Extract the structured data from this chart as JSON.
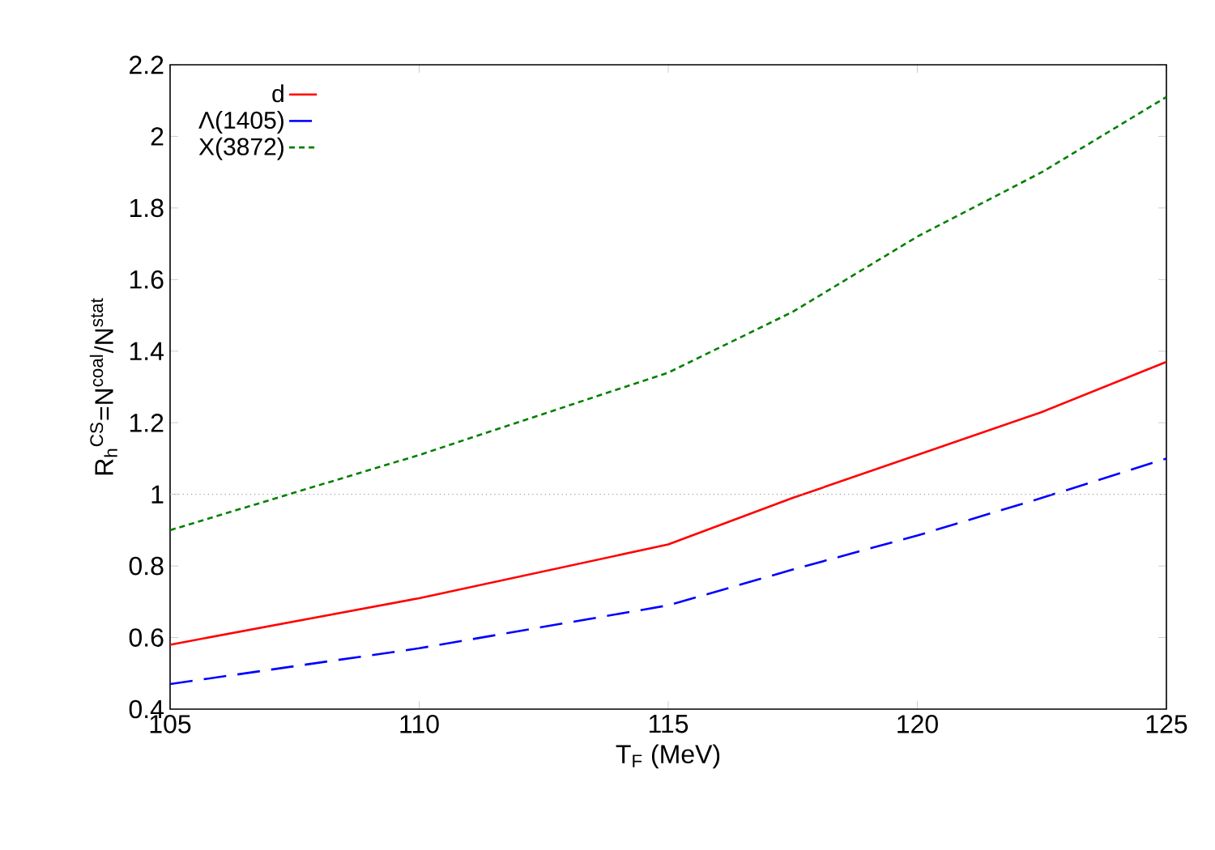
{
  "chart_data": {
    "type": "line",
    "xlabel": "T$_{F}$ (MeV)",
    "ylabel": "R$_{h}$$^{CS}$=N$^{coal}$/N$^{stat}$",
    "x": [
      105,
      110,
      115,
      117.5,
      120,
      122.5,
      125
    ],
    "series": [
      {
        "name": "d",
        "color": "#ff0000",
        "line_style": "solid",
        "values": [
          0.58,
          0.71,
          0.86,
          0.99,
          1.11,
          1.23,
          1.37
        ]
      },
      {
        "name": "Λ(1405)",
        "color": "#0000ff",
        "line_style": "dashed",
        "values": [
          0.47,
          0.57,
          0.69,
          0.79,
          0.885,
          0.99,
          1.1
        ]
      },
      {
        "name": "X(3872)",
        "color": "#008000",
        "line_style": "dotted",
        "values": [
          0.9,
          1.11,
          1.34,
          1.51,
          1.72,
          1.9,
          2.11
        ]
      }
    ],
    "xlim": [
      105,
      125
    ],
    "xticks": [
      105,
      110,
      115,
      120,
      125
    ],
    "ylim": [
      0.4,
      2.2
    ],
    "yticks": [
      0.4,
      0.6,
      0.8,
      1,
      1.2,
      1.4,
      1.6,
      1.8,
      2,
      2.2
    ],
    "ref_lines": [
      {
        "axis": "y",
        "value": 1,
        "color": "#a0a0a0",
        "line_style": "dotted"
      }
    ],
    "legend": "top left",
    "grid": false,
    "marker": "none"
  }
}
